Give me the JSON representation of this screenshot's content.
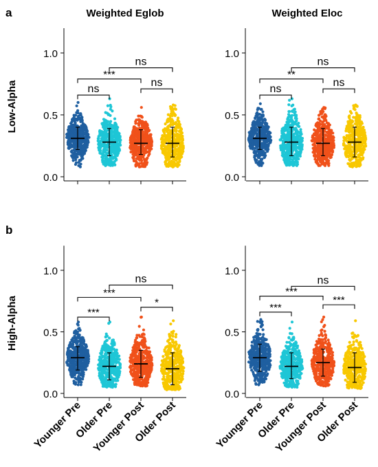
{
  "figure": {
    "panel_labels": [
      "a",
      "b"
    ],
    "column_titles": [
      "Weighted Eglob",
      "Weighted Eloc"
    ],
    "row_labels": [
      "Low-Alpha",
      "High-Alpha"
    ],
    "colors": {
      "Younger Pre": "#1f5fa0",
      "Older Pre": "#1ec6d6",
      "Younger Post": "#f0511a",
      "Older Post": "#f8c800"
    }
  },
  "chart_data": [
    {
      "type": "scatter",
      "subtype": "beeswarm",
      "row": 0,
      "col": 0,
      "column_title": "Weighted Eglob",
      "row_label": "Low-Alpha",
      "categories": [
        "Younger Pre",
        "Older Pre",
        "Younger Post",
        "Older Post"
      ],
      "ylim": [
        0,
        1.2
      ],
      "yticks": [
        "0.0",
        "0.5",
        "1.0"
      ],
      "show_xlabels": false,
      "groups": [
        {
          "name": "Younger Pre",
          "color": "#1f5fa0",
          "min": 0.08,
          "max": 0.6,
          "mean": 0.31,
          "sd_low": 0.22,
          "sd_high": 0.4
        },
        {
          "name": "Older Pre",
          "color": "#1ec6d6",
          "min": 0.09,
          "max": 0.63,
          "mean": 0.28,
          "sd_low": 0.17,
          "sd_high": 0.39
        },
        {
          "name": "Younger Post",
          "color": "#f0511a",
          "min": 0.08,
          "max": 0.56,
          "mean": 0.27,
          "sd_low": 0.18,
          "sd_high": 0.38
        },
        {
          "name": "Older Post",
          "color": "#f8c800",
          "min": 0.08,
          "max": 0.58,
          "mean": 0.27,
          "sd_low": 0.16,
          "sd_high": 0.4
        }
      ],
      "comparisons": [
        {
          "from": 0,
          "to": 1,
          "label": "ns",
          "y": 0.66
        },
        {
          "from": 2,
          "to": 3,
          "label": "ns",
          "y": 0.71
        },
        {
          "from": 0,
          "to": 2,
          "label": "***",
          "y": 0.79
        },
        {
          "from": 1,
          "to": 3,
          "label": "ns",
          "y": 0.88
        }
      ]
    },
    {
      "type": "scatter",
      "subtype": "beeswarm",
      "row": 0,
      "col": 1,
      "column_title": "Weighted Eloc",
      "row_label": "Low-Alpha",
      "categories": [
        "Younger Pre",
        "Older Pre",
        "Younger Post",
        "Older Post"
      ],
      "ylim": [
        0,
        1.2
      ],
      "yticks": [
        "0.0",
        "0.5",
        "1.0"
      ],
      "show_xlabels": false,
      "groups": [
        {
          "name": "Younger Pre",
          "color": "#1f5fa0",
          "min": 0.09,
          "max": 0.59,
          "mean": 0.31,
          "sd_low": 0.22,
          "sd_high": 0.4
        },
        {
          "name": "Older Pre",
          "color": "#1ec6d6",
          "min": 0.09,
          "max": 0.63,
          "mean": 0.28,
          "sd_low": 0.17,
          "sd_high": 0.4
        },
        {
          "name": "Younger Post",
          "color": "#f0511a",
          "min": 0.09,
          "max": 0.56,
          "mean": 0.27,
          "sd_low": 0.17,
          "sd_high": 0.39
        },
        {
          "name": "Older Post",
          "color": "#f8c800",
          "min": 0.08,
          "max": 0.58,
          "mean": 0.28,
          "sd_low": 0.16,
          "sd_high": 0.4
        }
      ],
      "comparisons": [
        {
          "from": 0,
          "to": 1,
          "label": "ns",
          "y": 0.66
        },
        {
          "from": 2,
          "to": 3,
          "label": "ns",
          "y": 0.71
        },
        {
          "from": 0,
          "to": 2,
          "label": "**",
          "y": 0.79
        },
        {
          "from": 1,
          "to": 3,
          "label": "ns",
          "y": 0.88
        }
      ]
    },
    {
      "type": "scatter",
      "subtype": "beeswarm",
      "row": 1,
      "col": 0,
      "column_title": "Weighted Eglob",
      "row_label": "High-Alpha",
      "categories": [
        "Younger Pre",
        "Older Pre",
        "Younger Post",
        "Older Post"
      ],
      "ylim": [
        0,
        1.2
      ],
      "yticks": [
        "0.0",
        "0.5",
        "1.0"
      ],
      "show_xlabels": true,
      "groups": [
        {
          "name": "Younger Pre",
          "color": "#1f5fa0",
          "min": 0.07,
          "max": 0.58,
          "mean": 0.29,
          "sd_low": 0.19,
          "sd_high": 0.38
        },
        {
          "name": "Older Pre",
          "color": "#1ec6d6",
          "min": 0.05,
          "max": 0.58,
          "mean": 0.22,
          "sd_low": 0.11,
          "sd_high": 0.33
        },
        {
          "name": "Younger Post",
          "color": "#f0511a",
          "min": 0.06,
          "max": 0.62,
          "mean": 0.24,
          "sd_low": 0.13,
          "sd_high": 0.35
        },
        {
          "name": "Older Post",
          "color": "#f8c800",
          "min": 0.03,
          "max": 0.59,
          "mean": 0.2,
          "sd_low": 0.07,
          "sd_high": 0.33
        }
      ],
      "comparisons": [
        {
          "from": 0,
          "to": 1,
          "label": "***",
          "y": 0.62
        },
        {
          "from": 2,
          "to": 3,
          "label": "*",
          "y": 0.7
        },
        {
          "from": 0,
          "to": 2,
          "label": "***",
          "y": 0.78
        },
        {
          "from": 1,
          "to": 3,
          "label": "ns",
          "y": 0.88
        }
      ]
    },
    {
      "type": "scatter",
      "subtype": "beeswarm",
      "row": 1,
      "col": 1,
      "column_title": "Weighted Eloc",
      "row_label": "High-Alpha",
      "categories": [
        "Younger Pre",
        "Older Pre",
        "Younger Post",
        "Older Post"
      ],
      "ylim": [
        0,
        1.2
      ],
      "yticks": [
        "0.0",
        "0.5",
        "1.0"
      ],
      "show_xlabels": true,
      "groups": [
        {
          "name": "Younger Pre",
          "color": "#1f5fa0",
          "min": 0.07,
          "max": 0.6,
          "mean": 0.29,
          "sd_low": 0.18,
          "sd_high": 0.4
        },
        {
          "name": "Older Pre",
          "color": "#1ec6d6",
          "min": 0.05,
          "max": 0.58,
          "mean": 0.22,
          "sd_low": 0.12,
          "sd_high": 0.33
        },
        {
          "name": "Younger Post",
          "color": "#f0511a",
          "min": 0.06,
          "max": 0.62,
          "mean": 0.25,
          "sd_low": 0.14,
          "sd_high": 0.36
        },
        {
          "name": "Older Post",
          "color": "#f8c800",
          "min": 0.04,
          "max": 0.59,
          "mean": 0.21,
          "sd_low": 0.09,
          "sd_high": 0.33
        }
      ],
      "comparisons": [
        {
          "from": 0,
          "to": 1,
          "label": "***",
          "y": 0.66
        },
        {
          "from": 2,
          "to": 3,
          "label": "***",
          "y": 0.72
        },
        {
          "from": 0,
          "to": 2,
          "label": "***",
          "y": 0.79
        },
        {
          "from": 1,
          "to": 3,
          "label": "ns",
          "y": 0.87
        }
      ]
    }
  ]
}
